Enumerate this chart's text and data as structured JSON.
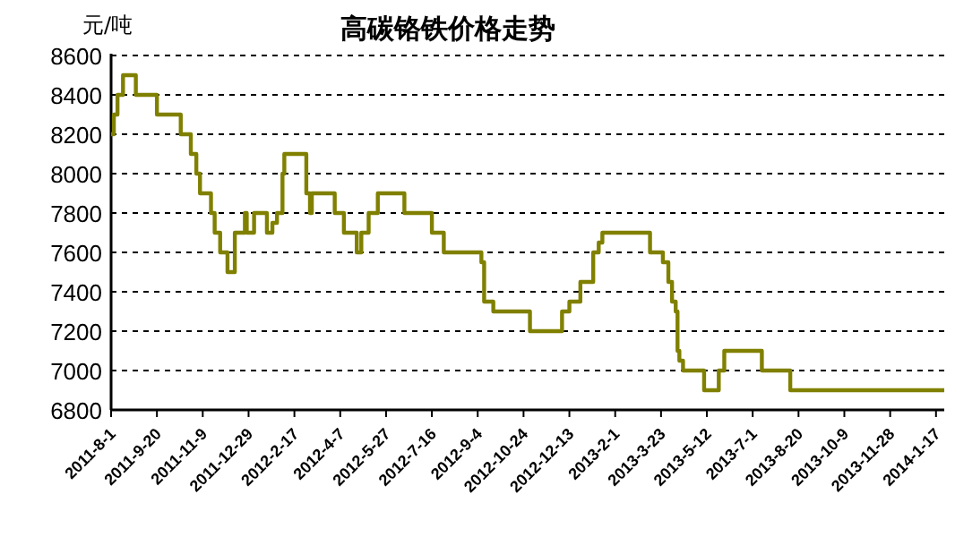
{
  "chart_data": {
    "type": "step",
    "title": "高碳铬铁价格走势",
    "ylabel": "元/吨",
    "color": "#808000",
    "grid": "y",
    "marker": "none",
    "line_style": "solid",
    "x": [
      "2011-08-01",
      "2011-08-04",
      "2011-08-08",
      "2011-08-14",
      "2011-08-28",
      "2011-09-20",
      "2011-10-16",
      "2011-10-27",
      "2011-11-02",
      "2011-11-06",
      "2011-11-18",
      "2011-11-22",
      "2011-11-28",
      "2011-12-06",
      "2011-12-14",
      "2011-12-25",
      "2011-12-27",
      "2012-01-04",
      "2012-01-18",
      "2012-01-24",
      "2012-01-29",
      "2012-02-04",
      "2012-02-06",
      "2012-03-01",
      "2012-03-05",
      "2012-03-07",
      "2012-04-01",
      "2012-04-11",
      "2012-04-25",
      "2012-04-30",
      "2012-05-08",
      "2012-05-18",
      "2012-06-16",
      "2012-07-16",
      "2012-07-29",
      "2012-09-08",
      "2012-09-11",
      "2012-09-21",
      "2012-10-31",
      "2012-12-05",
      "2012-12-13",
      "2012-12-25",
      "2013-01-08",
      "2013-01-14",
      "2013-01-18",
      "2013-03-11",
      "2013-03-25",
      "2013-03-31",
      "2013-04-04",
      "2013-04-08",
      "2013-04-10",
      "2013-04-12",
      "2013-04-16",
      "2013-05-09",
      "2013-05-25",
      "2013-05-31",
      "2013-07-11",
      "2013-08-11",
      "2014-01-26"
    ],
    "values": [
      8200,
      8300,
      8400,
      8500,
      8400,
      8300,
      8200,
      8100,
      8000,
      7900,
      7800,
      7700,
      7600,
      7500,
      7700,
      7800,
      7700,
      7800,
      7700,
      7750,
      7800,
      8000,
      8100,
      7900,
      7800,
      7900,
      7800,
      7700,
      7600,
      7700,
      7800,
      7900,
      7800,
      7700,
      7600,
      7550,
      7350,
      7300,
      7200,
      7300,
      7350,
      7450,
      7600,
      7650,
      7700,
      7600,
      7550,
      7450,
      7350,
      7300,
      7100,
      7050,
      7000,
      6900,
      7000,
      7100,
      7000,
      6900,
      6900
    ],
    "xlim": [
      "2011-08-01",
      "2014-01-26"
    ],
    "xticks": [
      {
        "value": "2011-08-01",
        "label": "2011-8-1"
      },
      {
        "value": "2011-09-20",
        "label": "2011-9-20"
      },
      {
        "value": "2011-11-09",
        "label": "2011-11-9"
      },
      {
        "value": "2011-12-29",
        "label": "2011-12-29"
      },
      {
        "value": "2012-02-17",
        "label": "2012-2-17"
      },
      {
        "value": "2012-04-07",
        "label": "2012-4-7"
      },
      {
        "value": "2012-05-27",
        "label": "2012-5-27"
      },
      {
        "value": "2012-07-16",
        "label": "2012-7-16"
      },
      {
        "value": "2012-09-04",
        "label": "2012-9-4"
      },
      {
        "value": "2012-10-24",
        "label": "2012-10-24"
      },
      {
        "value": "2012-12-13",
        "label": "2012-12-13"
      },
      {
        "value": "2013-02-01",
        "label": "2013-2-1"
      },
      {
        "value": "2013-03-23",
        "label": "2013-3-23"
      },
      {
        "value": "2013-05-12",
        "label": "2013-5-12"
      },
      {
        "value": "2013-07-01",
        "label": "2013-7-1"
      },
      {
        "value": "2013-08-20",
        "label": "2013-8-20"
      },
      {
        "value": "2013-10-09",
        "label": "2013-10-9"
      },
      {
        "value": "2013-11-28",
        "label": "2013-11-28"
      },
      {
        "value": "2014-01-17",
        "label": "2014-1-17"
      }
    ],
    "ylim": [
      6800,
      8600
    ],
    "yticks": [
      6800,
      7000,
      7200,
      7400,
      7600,
      7800,
      8000,
      8200,
      8400,
      8600
    ]
  }
}
